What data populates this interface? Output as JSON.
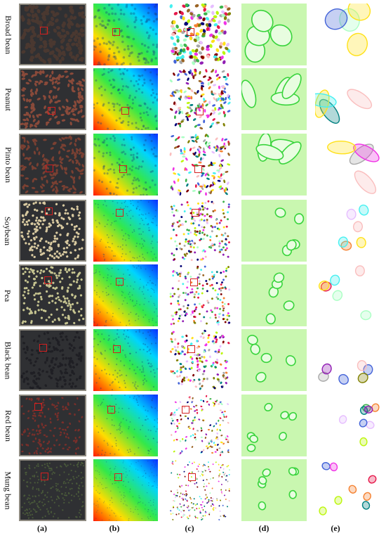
{
  "rows": [
    {
      "label": "Broad bean"
    },
    {
      "label": "Peanut"
    },
    {
      "label": "Pinto bean"
    },
    {
      "label": "Soybean"
    },
    {
      "label": "Pea"
    },
    {
      "label": "Black bean"
    },
    {
      "label": "Red bean"
    },
    {
      "label": "Mung bean"
    }
  ],
  "columns": [
    {
      "label": "(a)"
    },
    {
      "label": "(b)"
    },
    {
      "label": "(c)"
    },
    {
      "label": "(d)"
    },
    {
      "label": "(e)"
    }
  ],
  "colors": {
    "highlight_box": "#d42020",
    "photo_bg": "#2f3033",
    "density_low": "#ff2a00",
    "density_high": "#0a2cff",
    "zoom_bg": "#c9f7b0",
    "zoom_outline": "#39d43c"
  }
}
